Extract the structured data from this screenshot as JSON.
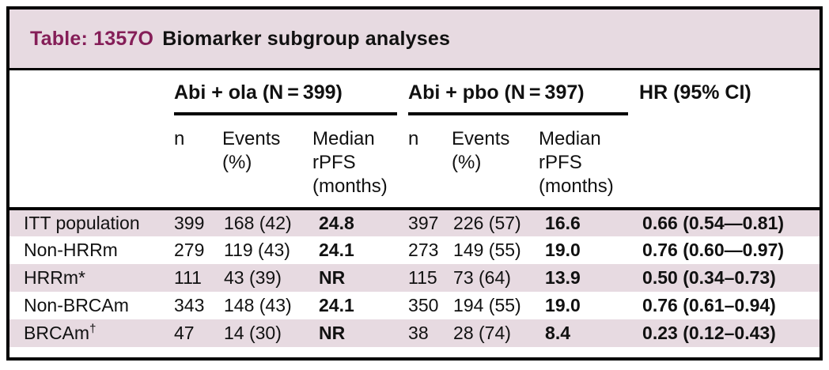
{
  "title": {
    "accent": "Table: 1357O",
    "main": "Biomarker subgroup analyses"
  },
  "columns": {
    "group1": "Abi + ola (N = 399)",
    "group2": "Abi + pbo (N = 397)",
    "hr": "HR (95% CI)",
    "sub1": {
      "n": "n",
      "events": "Events\n(%)",
      "median": "Median\nrPFS\n(months)"
    },
    "sub2": {
      "n": "n",
      "events": "Events\n(%)",
      "median": "Median\nrPFS\n(months)"
    }
  },
  "rows": [
    {
      "label": "ITT population",
      "sup": "",
      "n1": "399",
      "ev1": "168 (42)",
      "med1": "24.8",
      "n2": "397",
      "ev2": "226 (57)",
      "med2": "16.6",
      "hr": "0.66 (0.54—0.81)"
    },
    {
      "label": "Non-HRRm",
      "sup": "",
      "n1": "279",
      "ev1": "119 (43)",
      "med1": "24.1",
      "n2": "273",
      "ev2": "149 (55)",
      "med2": "19.0",
      "hr": "0.76 (0.60—0.97)"
    },
    {
      "label": "HRRm*",
      "sup": "",
      "n1": "111",
      "ev1": "43 (39)",
      "med1": "NR",
      "n2": "115",
      "ev2": "73 (64)",
      "med2": "13.9",
      "hr": "0.50 (0.34–0.73)"
    },
    {
      "label": "Non-BRCAm",
      "sup": "",
      "n1": "343",
      "ev1": "148 (43)",
      "med1": "24.1",
      "n2": "350",
      "ev2": "194 (55)",
      "med2": "19.0",
      "hr": "0.76 (0.61–0.94)"
    },
    {
      "label": "BRCAm",
      "sup": "†",
      "n1": "47",
      "ev1": "14 (30)",
      "med1": "NR",
      "n2": "38",
      "ev2": "28 (74)",
      "med2": "8.4",
      "hr": "0.23 (0.12–0.43)"
    }
  ],
  "colors": {
    "accent_text": "#851e58",
    "band_pink": "#e7dae1",
    "border_black": "#000000"
  }
}
